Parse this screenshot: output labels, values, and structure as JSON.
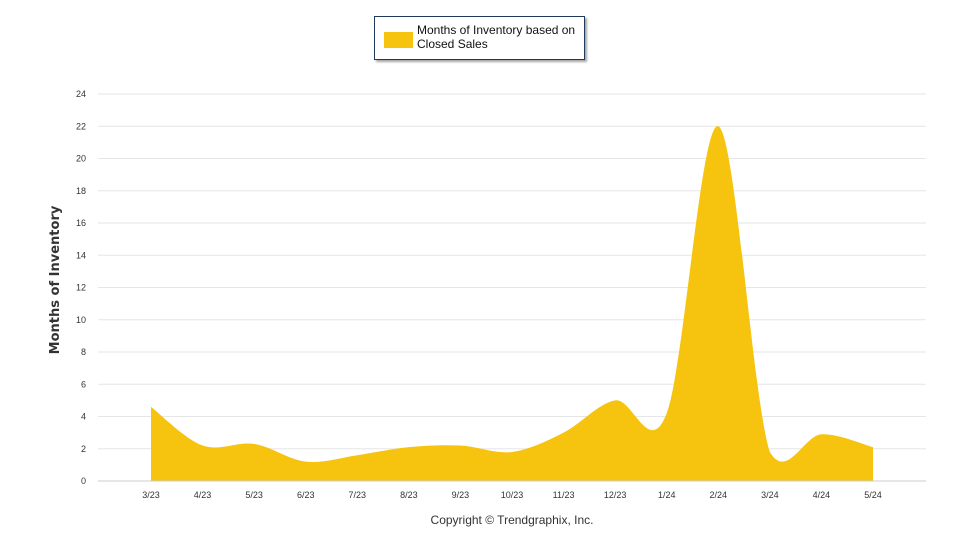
{
  "chart_data": {
    "type": "area",
    "categories": [
      "3/23",
      "4/23",
      "5/23",
      "6/23",
      "7/23",
      "8/23",
      "9/23",
      "10/23",
      "11/23",
      "12/23",
      "1/24",
      "2/24",
      "3/24",
      "4/24",
      "5/24"
    ],
    "series": [
      {
        "name": "Months of Inventory based on Closed Sales",
        "color": "#F6C30E",
        "values": [
          4.6,
          2.2,
          2.3,
          1.2,
          1.6,
          2.1,
          2.2,
          1.8,
          3.0,
          5.0,
          4.2,
          22.0,
          1.8,
          2.9,
          2.1
        ]
      }
    ],
    "ylabel": "Months of Inventory",
    "xlabel": "",
    "ylim": [
      0,
      24
    ],
    "yticks": [
      0,
      2,
      4,
      6,
      8,
      10,
      12,
      14,
      16,
      18,
      20,
      22,
      24
    ],
    "grid": true,
    "legend_position": "top-center"
  },
  "footer": {
    "copyright": "Copyright © Trendgraphix, Inc."
  },
  "colors": {
    "area": "#F6C30E",
    "grid": "#e6e6e6",
    "legend_border": "#1f3b5c"
  }
}
